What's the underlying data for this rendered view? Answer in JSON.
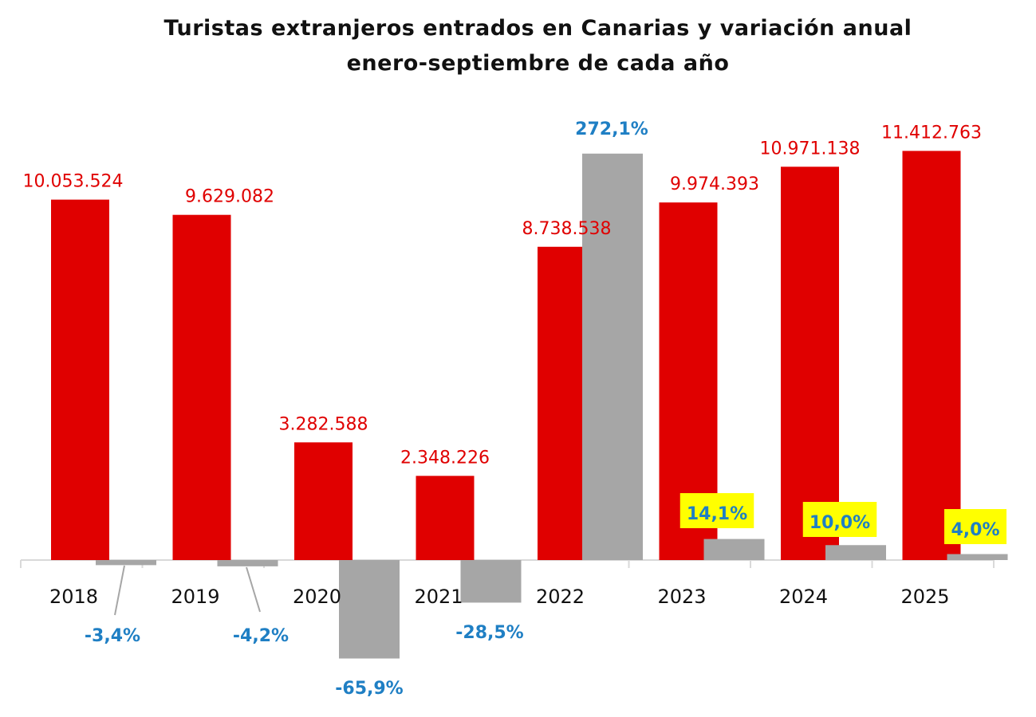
{
  "chart_data": {
    "type": "bar",
    "title_line1": "Turistas extranjeros entrados en Canarias y variación anual",
    "title_line2": "enero-septiembre de cada año",
    "categories": [
      "2018",
      "2019",
      "2020",
      "2021",
      "2022",
      "2023",
      "2024",
      "2025"
    ],
    "series": [
      {
        "values": [
          10053524,
          9629082,
          3282588,
          2348226,
          8738538,
          9974393,
          10971138,
          11412763
        ],
        "labels": [
          "10.053.524",
          "9.629.082",
          "3.282.588",
          "2.348.226",
          "8.738.538",
          "9.974.393",
          "10.971.138",
          "11.412.763"
        ],
        "color": "#e00000"
      },
      {
        "values": [
          -3.4,
          -4.2,
          -65.9,
          -28.5,
          272.1,
          14.1,
          10.0,
          4.0
        ],
        "labels": [
          "-3,4%",
          "-4,2%",
          "-65,9%",
          "-28,5%",
          "272,1%",
          "14,1%",
          "10,0%",
          "4,0%"
        ],
        "color": "#a6a6a6",
        "label_color": "#1f7fc4",
        "highlighted_labels": [
          "14,1%",
          "10,0%",
          "4,0%"
        ],
        "highlight_color": "#ffff00"
      }
    ],
    "grid": false,
    "legend": "none"
  }
}
